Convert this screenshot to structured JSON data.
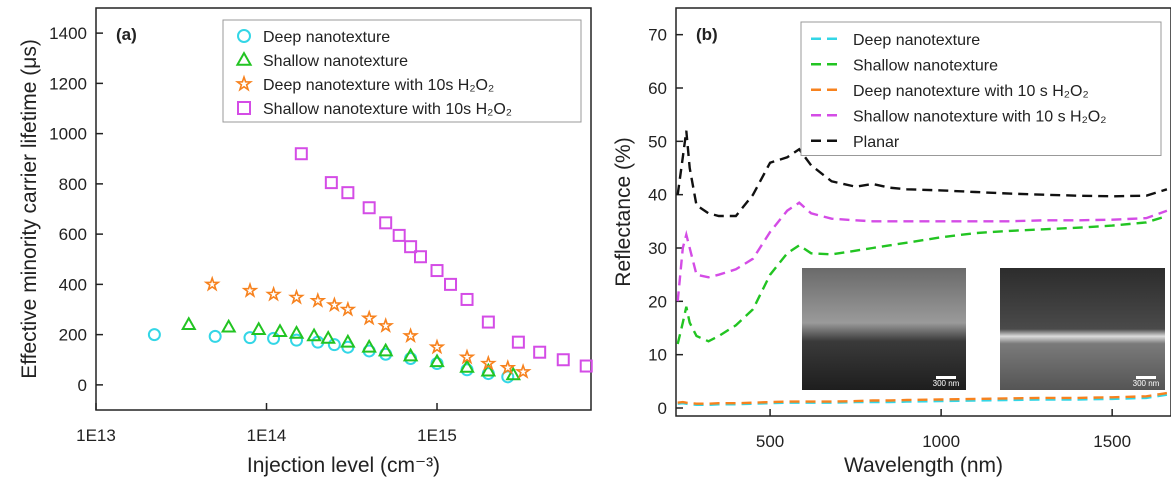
{
  "chart_data": [
    {
      "type": "scatter",
      "panel_label": "(a)",
      "x_label": "Injection level (cm⁻³)",
      "y_label": "Effective minority carrier lifetime (μs)",
      "xscale": "log",
      "xlim": [
        10000000000000.0,
        8000000000000000.0
      ],
      "ylim": [
        -100,
        1500
      ],
      "xticks": [
        {
          "value": 10000000000000.0,
          "label": "1E13"
        },
        {
          "value": 100000000000000.0,
          "label": "1E14"
        },
        {
          "value": 1000000000000000.0,
          "label": "1E15"
        }
      ],
      "yticks": [
        0,
        200,
        400,
        600,
        800,
        1000,
        1200,
        1400
      ],
      "legend": "upper right",
      "series": [
        {
          "name": "Deep nanotexture",
          "color": "#33d6e6",
          "marker": "circle",
          "x": [
            22000000000000.0,
            50000000000000.0,
            80000000000000.0,
            110000000000000.0,
            150000000000000.0,
            200000000000000.0,
            250000000000000.0,
            300000000000000.0,
            400000000000000.0,
            500000000000000.0,
            700000000000000.0,
            1000000000000000.0,
            1500000000000000.0,
            2000000000000000.0,
            2600000000000000.0
          ],
          "values": [
            200,
            193,
            188,
            185,
            178,
            170,
            160,
            150,
            135,
            122,
            105,
            85,
            60,
            45,
            32
          ]
        },
        {
          "name": "Shallow nanotexture",
          "color": "#22c422",
          "marker": "triangle",
          "x": [
            35000000000000.0,
            60000000000000.0,
            90000000000000.0,
            120000000000000.0,
            150000000000000.0,
            190000000000000.0,
            230000000000000.0,
            300000000000000.0,
            400000000000000.0,
            500000000000000.0,
            700000000000000.0,
            1000000000000000.0,
            1500000000000000.0,
            2000000000000000.0,
            2800000000000000.0
          ],
          "values": [
            240,
            230,
            220,
            212,
            205,
            195,
            185,
            170,
            150,
            135,
            115,
            92,
            70,
            55,
            40
          ]
        },
        {
          "name": "Deep nanotexture with 10s H₂O₂",
          "color": "#f7821e",
          "marker": "star",
          "x": [
            48000000000000.0,
            80000000000000.0,
            110000000000000.0,
            150000000000000.0,
            200000000000000.0,
            250000000000000.0,
            300000000000000.0,
            400000000000000.0,
            500000000000000.0,
            700000000000000.0,
            1000000000000000.0,
            1500000000000000.0,
            2000000000000000.0,
            2600000000000000.0,
            3200000000000000.0
          ],
          "values": [
            400,
            375,
            360,
            348,
            335,
            318,
            300,
            265,
            235,
            195,
            150,
            110,
            85,
            68,
            52
          ]
        },
        {
          "name": "Shallow nanotexture with 10s H₂O₂",
          "color": "#d44ce6",
          "marker": "square",
          "x": [
            160000000000000.0,
            240000000000000.0,
            300000000000000.0,
            400000000000000.0,
            500000000000000.0,
            600000000000000.0,
            700000000000000.0,
            800000000000000.0,
            1000000000000000.0,
            1200000000000000.0,
            1500000000000000.0,
            2000000000000000.0,
            3000000000000000.0,
            4000000000000000.0,
            5500000000000000.0,
            7500000000000000.0
          ],
          "values": [
            920,
            805,
            765,
            705,
            645,
            595,
            550,
            510,
            455,
            400,
            340,
            250,
            170,
            130,
            100,
            75
          ]
        }
      ]
    },
    {
      "type": "line",
      "panel_label": "(b)",
      "x_label": "Wavelength (nm)",
      "y_label": "Reflectance (%)",
      "xlim": [
        225,
        1672
      ],
      "ylim": [
        -1.5,
        75
      ],
      "xticks": [
        500,
        1000,
        1500
      ],
      "yticks": [
        0,
        10,
        20,
        30,
        40,
        50,
        60,
        70
      ],
      "legend": "upper right",
      "x": [
        230,
        245,
        255,
        265,
        285,
        320,
        350,
        400,
        450,
        500,
        550,
        585,
        620,
        680,
        750,
        800,
        850,
        900,
        1000,
        1100,
        1200,
        1300,
        1400,
        1500,
        1600,
        1660
      ],
      "series": [
        {
          "name": "Deep nanotexture",
          "color": "#33d6e6",
          "values": [
            0.8,
            0.9,
            0.8,
            0.7,
            0.6,
            0.6,
            0.7,
            0.7,
            0.8,
            0.9,
            1.0,
            1.0,
            1.0,
            1.0,
            1.1,
            1.1,
            1.1,
            1.2,
            1.3,
            1.4,
            1.5,
            1.6,
            1.6,
            1.7,
            1.9,
            2.5
          ]
        },
        {
          "name": "Shallow nanotexture",
          "color": "#22c422",
          "values": [
            12,
            16,
            19,
            16,
            13.5,
            12.5,
            13.5,
            15.5,
            18.5,
            25,
            29,
            30.5,
            29,
            28.8,
            29.5,
            30,
            30.5,
            31,
            32,
            32.8,
            33.2,
            33.5,
            33.8,
            34.2,
            34.8,
            36
          ]
        },
        {
          "name": "Deep nanotexture with 10 s H₂O₂",
          "color": "#f7821e",
          "values": [
            1.0,
            1.1,
            1.0,
            0.9,
            0.8,
            0.8,
            0.9,
            0.9,
            1.0,
            1.1,
            1.2,
            1.2,
            1.2,
            1.2,
            1.3,
            1.4,
            1.4,
            1.5,
            1.6,
            1.7,
            1.8,
            1.9,
            1.9,
            2.0,
            2.2,
            2.8
          ]
        },
        {
          "name": "Shallow nanotexture with 10 s H₂O₂",
          "color": "#d44ce6",
          "values": [
            20,
            30,
            32.5,
            30,
            25,
            24.5,
            25,
            26,
            28,
            33,
            37,
            38.5,
            36.5,
            35.5,
            35.2,
            35,
            35,
            35,
            35,
            35,
            35,
            35.2,
            35.2,
            35.3,
            35.6,
            37
          ]
        },
        {
          "name": "Planar",
          "color": "#111111",
          "values": [
            40,
            47,
            52,
            45,
            38,
            36.5,
            36,
            36,
            40,
            46,
            47,
            48.5,
            45.5,
            42.5,
            41.5,
            42,
            41.3,
            41,
            40.8,
            40.5,
            40.2,
            40,
            39.8,
            39.7,
            39.8,
            41
          ]
        }
      ]
    }
  ],
  "insets": [
    {
      "scale_label": "300 nm"
    },
    {
      "scale_label": "300 nm"
    }
  ]
}
